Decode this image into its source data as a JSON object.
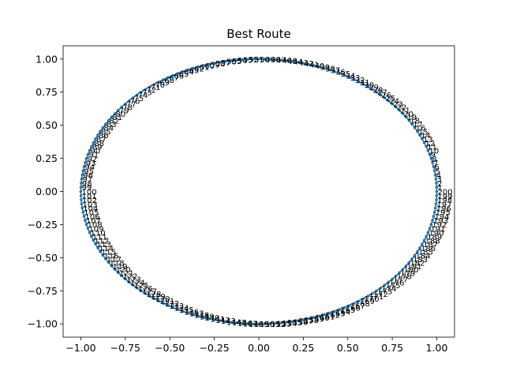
{
  "chart_data": {
    "type": "line",
    "title": "Best Route",
    "xlabel": "",
    "ylabel": "",
    "xlim": [
      -1.0997,
      1.0997
    ],
    "ylim": [
      -1.0999,
      1.0999
    ],
    "x_ticks": [
      -1.0,
      -0.75,
      -0.5,
      -0.25,
      0.0,
      0.25,
      0.5,
      0.75,
      1.0
    ],
    "x_tick_labels": [
      "−1.00",
      "−0.75",
      "−0.50",
      "−0.25",
      "0.00",
      "0.25",
      "0.50",
      "0.75",
      "1.00"
    ],
    "y_ticks": [
      -1.0,
      -0.75,
      -0.5,
      -0.25,
      0.0,
      0.25,
      0.5,
      0.75,
      1.0
    ],
    "y_tick_labels": [
      "−1.00",
      "−0.75",
      "−0.50",
      "−0.25",
      "0.00",
      "0.25",
      "0.50",
      "0.75",
      "1.00"
    ],
    "grid": false,
    "legend": "none",
    "series": [
      {
        "point_count": 200,
        "shape": "unit circle",
        "labels": "point index 1-200 printed next to each point",
        "color": "#1f77b4"
      }
    ]
  }
}
